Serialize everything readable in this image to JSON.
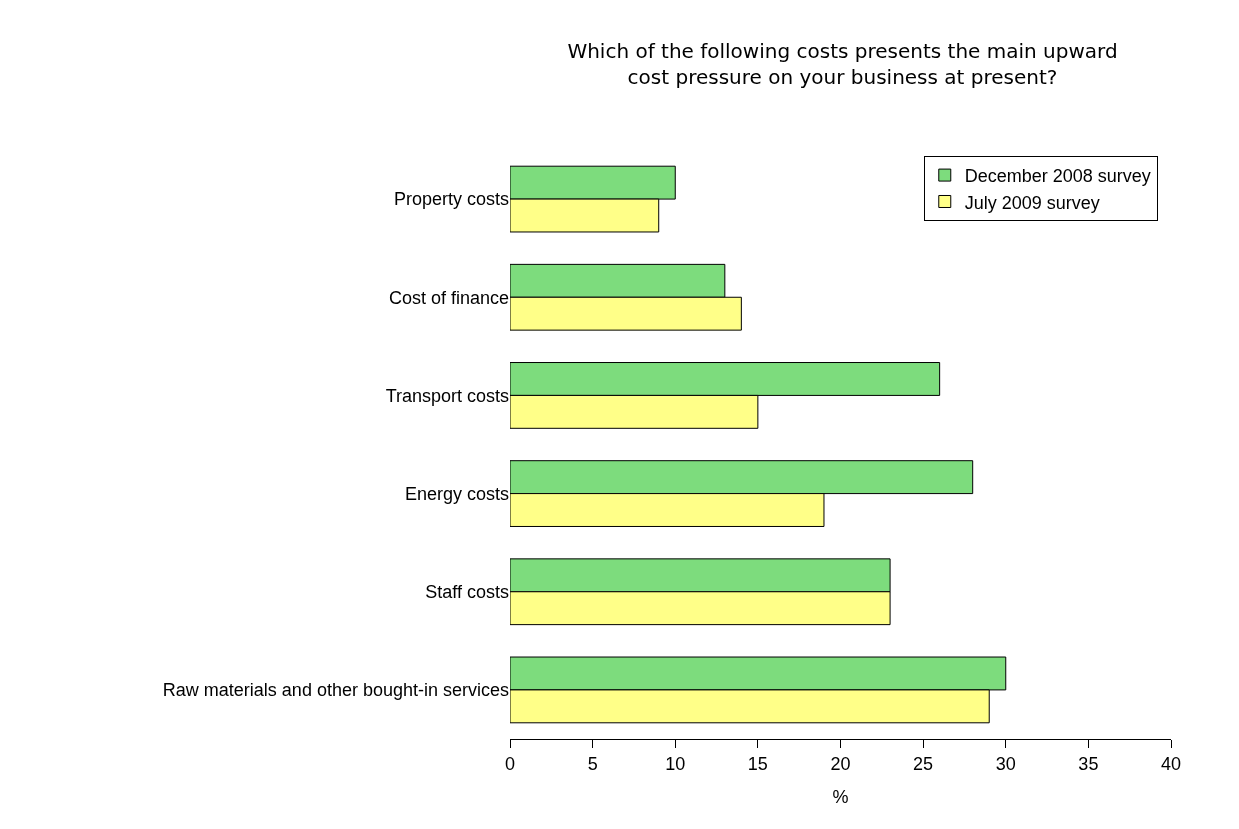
{
  "chart_data": {
    "type": "bar",
    "orientation": "horizontal",
    "title": "Which of the following costs presents the main upward\ncost pressure on your business at present?",
    "categories": [
      "Property costs",
      "Cost of finance",
      "Transport costs",
      "Energy costs",
      "Staff costs",
      "Raw materials and other bought-in services"
    ],
    "series": [
      {
        "name": "December 2008 survey",
        "color": "#7ddc7d",
        "values": [
          10,
          13,
          26,
          28,
          23,
          30
        ]
      },
      {
        "name": "July 2009 survey",
        "color": "#ffff88",
        "values": [
          9,
          14,
          15,
          19,
          23,
          29
        ]
      }
    ],
    "xlabel": "%",
    "xlim": [
      0,
      40
    ],
    "xticks": [
      0,
      5,
      10,
      15,
      20,
      25,
      30,
      35,
      40
    ],
    "grid": false,
    "legend": "top right"
  }
}
